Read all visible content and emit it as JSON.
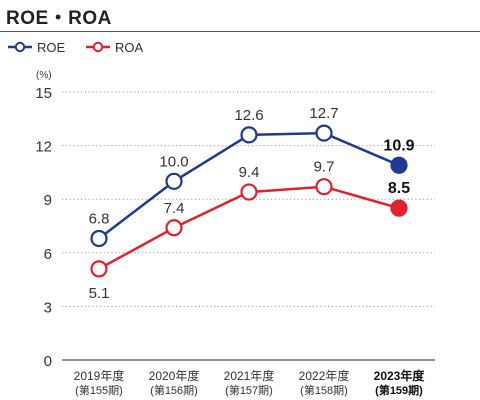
{
  "title": "ROE・ROA",
  "colors": {
    "roe": "#1f3a93",
    "roa": "#e0212e",
    "grid": "#999999",
    "axis": "#555555",
    "text": "#333333",
    "bg": "#ffffff"
  },
  "chart_data": {
    "type": "line",
    "unit_label": "(%)",
    "ylim": [
      0,
      15
    ],
    "yticks": [
      0,
      3,
      6,
      9,
      12,
      15
    ],
    "grid": "dotted horizontal",
    "legend_placement": "top-left",
    "categories": [
      {
        "year": "2019年度",
        "term": "(第155期)",
        "highlight": false
      },
      {
        "year": "2020年度",
        "term": "(第156期)",
        "highlight": false
      },
      {
        "year": "2021年度",
        "term": "(第157期)",
        "highlight": false
      },
      {
        "year": "2022年度",
        "term": "(第158期)",
        "highlight": false
      },
      {
        "year": "2023年度",
        "term": "(第159期)",
        "highlight": true
      }
    ],
    "series": [
      {
        "name": "ROE",
        "color_key": "roe",
        "values": [
          6.8,
          10.0,
          12.6,
          12.7,
          10.9
        ],
        "labels": [
          "6.8",
          "10.0",
          "12.6",
          "12.7",
          "10.9"
        ],
        "label_side": "above"
      },
      {
        "name": "ROA",
        "color_key": "roa",
        "values": [
          5.1,
          7.4,
          9.4,
          9.7,
          8.5
        ],
        "labels": [
          "5.1",
          "7.4",
          "9.4",
          "9.7",
          "8.5"
        ],
        "label_side": [
          "below",
          "above",
          "above",
          "above",
          "above"
        ]
      }
    ]
  }
}
